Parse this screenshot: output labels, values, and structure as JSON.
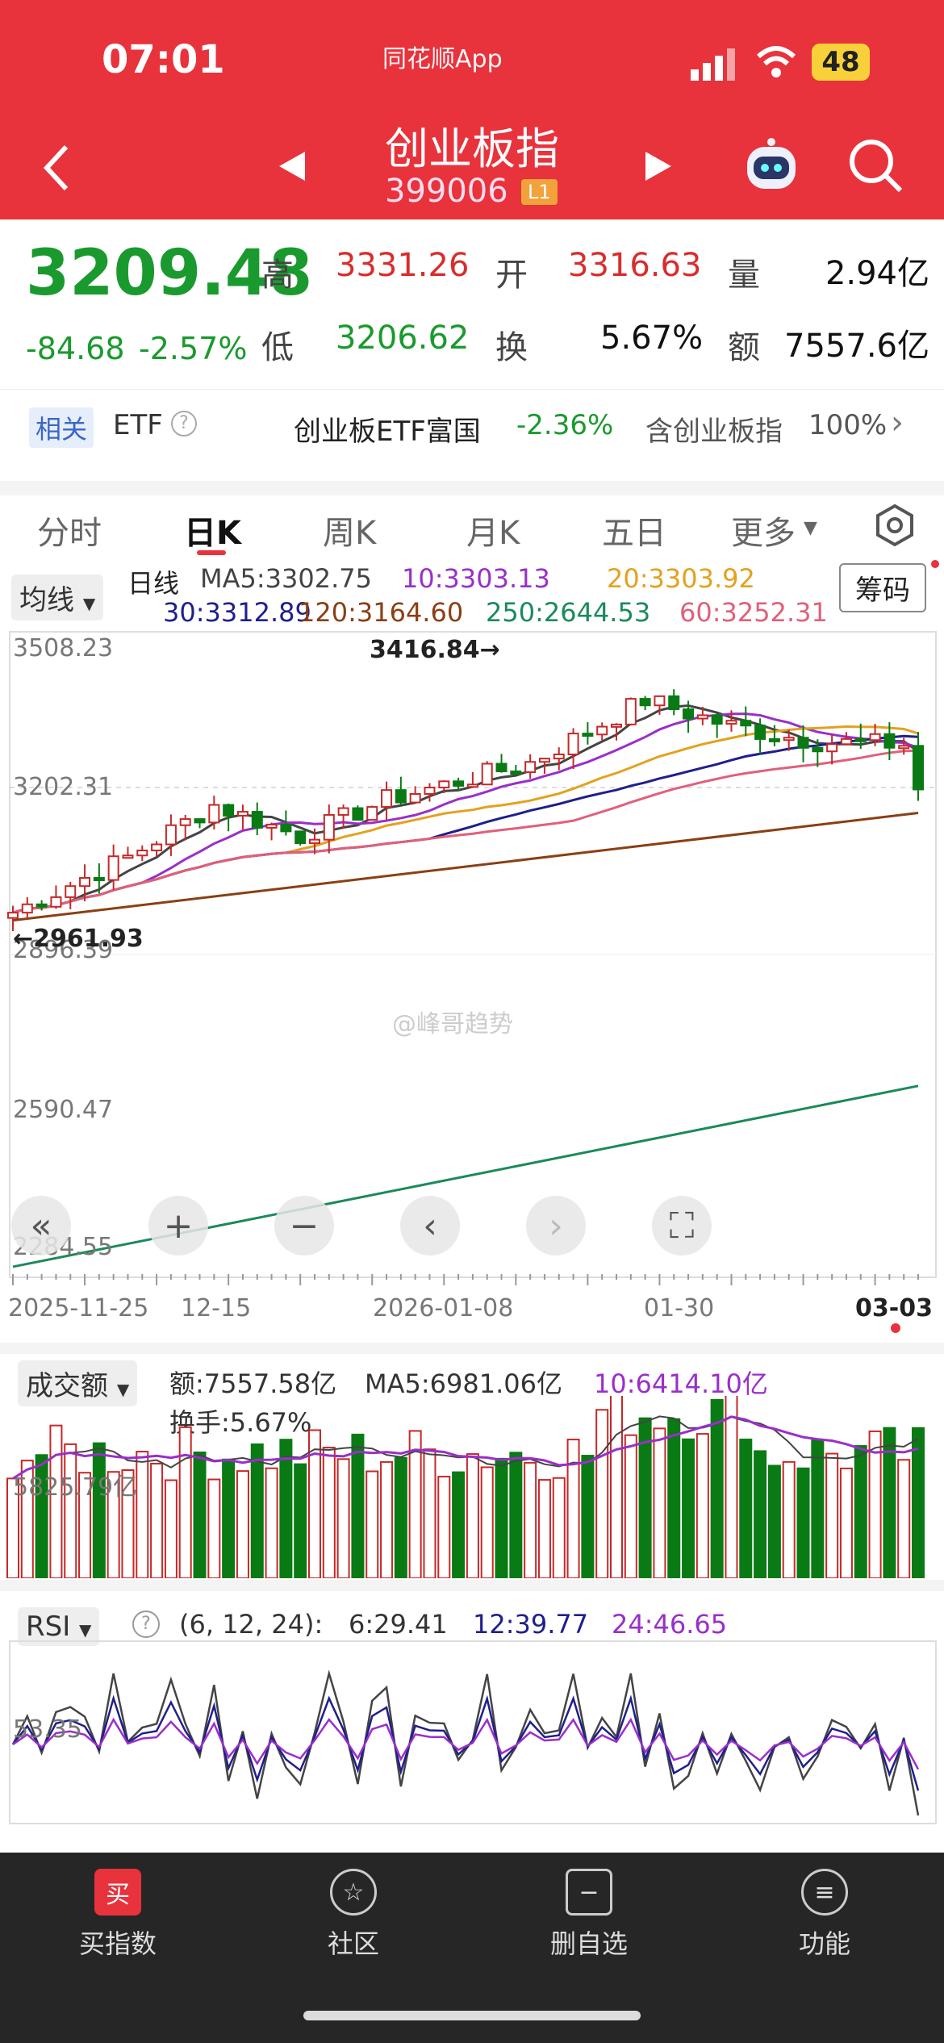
{
  "status": {
    "time": "07:01",
    "app": "同花顺App",
    "battery": "48"
  },
  "header": {
    "title": "创业板指",
    "code": "399006",
    "level": "L1"
  },
  "quote": {
    "price": "3209.48",
    "change": "-84.68",
    "pct": "-2.57%",
    "high_lbl": "高",
    "high": "3331.26",
    "open_lbl": "开",
    "open": "3316.63",
    "vol_lbl": "量",
    "vol": "2.94亿",
    "low_lbl": "低",
    "low": "3206.62",
    "turn_lbl": "换",
    "turn": "5.67%",
    "amt_lbl": "额",
    "amt": "7557.6亿"
  },
  "etf": {
    "related": "相关",
    "etf": "ETF",
    "name": "创业板ETF富国",
    "pct": "-2.36%",
    "contain": "含创业板指",
    "weight": "100%"
  },
  "tabs": [
    "分时",
    "日K",
    "周K",
    "月K",
    "五日",
    "更多"
  ],
  "kline": {
    "ma_btn": "均线",
    "chips_btn": "筹码",
    "legend": [
      {
        "text": "日线",
        "color": "#222"
      },
      {
        "text": "MA5:3302.75",
        "color": "#444"
      },
      {
        "text": "10:3303.13",
        "color": "#9a2fc9"
      },
      {
        "text": "20:3303.92",
        "color": "#e2a21e"
      },
      {
        "text": "30:3312.89",
        "color": "#1f1f8c"
      },
      {
        "text": "120:3164.60",
        "color": "#8a3f14"
      },
      {
        "text": "250:2644.53",
        "color": "#1b8a5a"
      },
      {
        "text": "60:3252.31",
        "color": "#e0607a"
      }
    ],
    "y_labels": [
      "3508.23",
      "3202.31",
      "2896.39",
      "2590.47",
      "2284.55"
    ],
    "max_label": "3416.84→",
    "min_label": "←2961.93",
    "x_labels": [
      "2025-11-25",
      "12-15",
      "2026-01-08",
      "01-30",
      "03-03"
    ]
  },
  "chart_data": [
    {
      "type": "candlestick",
      "title": "日K",
      "ylim": [
        2284.55,
        3508.23
      ],
      "max": 3416.84,
      "min": 2961.93,
      "last_close": 3209.48,
      "ma": {
        "MA5": 3302.75,
        "MA10": 3303.13,
        "MA20": 3303.92,
        "MA30": 3312.89,
        "MA60": 3252.31,
        "MA120": 3164.6,
        "MA250": 2644.53
      }
    },
    {
      "type": "bar",
      "title": "成交额",
      "values": {
        "额": "7557.58亿",
        "MA5": "6981.06亿",
        "10": "6414.10亿",
        "换手": "5.67%"
      },
      "y_label": "5825.79亿"
    },
    {
      "type": "line",
      "title": "RSI",
      "params": "(6, 12, 24):",
      "series": [
        {
          "name": "6",
          "value": 29.41
        },
        {
          "name": "12",
          "value": 39.77
        },
        {
          "name": "24",
          "value": 46.65
        }
      ],
      "y_label": "53.35"
    }
  ],
  "volume": {
    "btn": "成交额",
    "amt": "额:7557.58亿",
    "ma5": "MA5:6981.06亿",
    "ma10": "10:6414.10亿",
    "turn": "换手:5.67%",
    "y_label": "5825.79亿"
  },
  "rsi": {
    "btn": "RSI",
    "params": "(6, 12, 24):",
    "r6": "6:29.41",
    "r12": "12:39.77",
    "r24": "24:46.65",
    "y_label": "53.35"
  },
  "watermark": "@峰哥趋势",
  "nav": [
    {
      "label": "买指数",
      "icon": "买"
    },
    {
      "label": "社区",
      "icon": "☆"
    },
    {
      "label": "删自选",
      "icon": "−"
    },
    {
      "label": "功能",
      "icon": "≡"
    }
  ]
}
